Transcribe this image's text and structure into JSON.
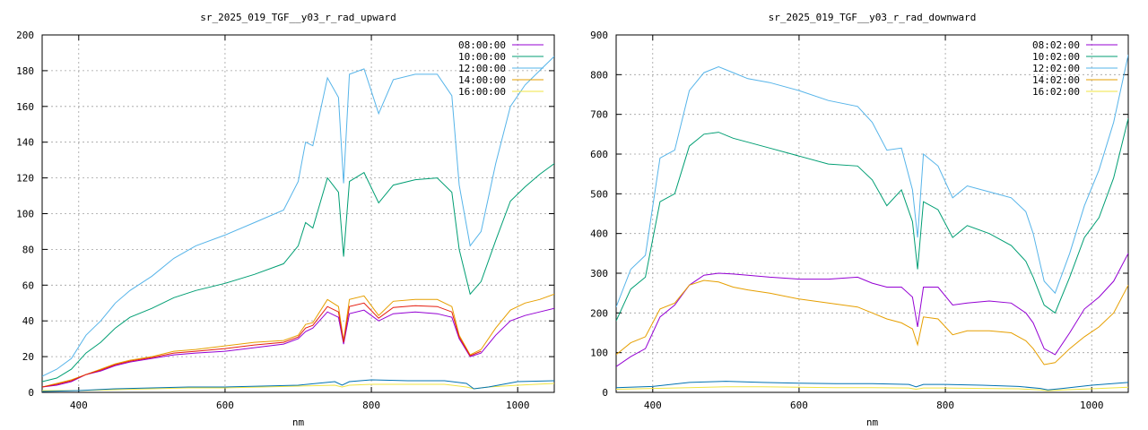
{
  "chart_data": [
    {
      "type": "line",
      "title": "sr_2025_019_TGF__y03_r_rad_upward",
      "xlabel": "nm",
      "ylabel": "",
      "xlim": [
        350,
        1050
      ],
      "ylim": [
        0,
        200
      ],
      "xticks": [
        400,
        600,
        800,
        1000
      ],
      "yticks": [
        0,
        20,
        40,
        60,
        80,
        100,
        120,
        140,
        160,
        180,
        200
      ],
      "grid": true,
      "legend": "top-right",
      "series": [
        {
          "name": "08:00:00",
          "color": "#9400d3",
          "x": [
            350,
            370,
            390,
            410,
            430,
            450,
            470,
            500,
            530,
            560,
            600,
            640,
            680,
            700,
            710,
            720,
            740,
            755,
            762,
            770,
            790,
            810,
            830,
            860,
            890,
            910,
            920,
            935,
            950,
            970,
            990,
            1010,
            1030,
            1050
          ],
          "y": [
            3,
            4,
            6,
            10,
            12,
            15,
            17,
            19,
            21,
            22,
            23,
            25,
            27,
            30,
            34,
            36,
            45,
            42,
            27,
            44,
            46,
            40,
            44,
            45,
            44,
            42,
            30,
            20,
            22,
            32,
            40,
            43,
            45,
            47
          ]
        },
        {
          "name": "10:00:00",
          "color": "#009e73",
          "x": [
            350,
            370,
            390,
            410,
            430,
            450,
            470,
            500,
            530,
            560,
            600,
            640,
            680,
            700,
            710,
            720,
            740,
            755,
            762,
            770,
            790,
            810,
            830,
            860,
            890,
            910,
            920,
            935,
            950,
            970,
            990,
            1010,
            1030,
            1050
          ],
          "y": [
            6,
            8,
            13,
            22,
            28,
            36,
            42,
            47,
            53,
            57,
            61,
            66,
            72,
            82,
            95,
            92,
            120,
            112,
            76,
            118,
            123,
            106,
            116,
            119,
            120,
            112,
            80,
            55,
            62,
            85,
            107,
            115,
            122,
            128
          ]
        },
        {
          "name": "12:00:00",
          "color": "#56b4e9",
          "x": [
            350,
            370,
            390,
            410,
            430,
            450,
            470,
            500,
            530,
            560,
            600,
            640,
            680,
            700,
            710,
            720,
            740,
            755,
            762,
            770,
            790,
            810,
            830,
            860,
            890,
            910,
            920,
            935,
            950,
            970,
            990,
            1010,
            1030,
            1050
          ],
          "y": [
            9,
            13,
            19,
            32,
            40,
            50,
            57,
            65,
            75,
            82,
            88,
            95,
            102,
            118,
            140,
            138,
            176,
            165,
            117,
            178,
            181,
            156,
            175,
            178,
            178,
            166,
            116,
            82,
            90,
            128,
            160,
            172,
            180,
            188
          ]
        },
        {
          "name": "14:00:00",
          "color": "#e69f00",
          "x": [
            350,
            370,
            390,
            410,
            430,
            450,
            470,
            500,
            530,
            560,
            600,
            640,
            680,
            700,
            710,
            720,
            740,
            755,
            762,
            770,
            790,
            810,
            830,
            860,
            890,
            910,
            920,
            935,
            950,
            970,
            990,
            1010,
            1030,
            1050
          ],
          "y": [
            3,
            5,
            7,
            10,
            13,
            16,
            18,
            20,
            23,
            24,
            26,
            28,
            29,
            32,
            38,
            39,
            52,
            48,
            29,
            52,
            54,
            43,
            51,
            52,
            52,
            48,
            32,
            21,
            24,
            36,
            46,
            50,
            52,
            55
          ]
        },
        {
          "name": "16:00:00",
          "color": "#f0e442",
          "x": [
            350,
            400,
            450,
            500,
            550,
            600,
            650,
            700,
            750,
            760,
            770,
            800,
            850,
            900,
            930,
            940,
            960,
            1000,
            1050
          ],
          "y": [
            1,
            1,
            1.5,
            2,
            2.5,
            2.5,
            3,
            3.5,
            4,
            3,
            4,
            4.5,
            4.5,
            4.5,
            3,
            2,
            3,
            4,
            5
          ]
        },
        {
          "name": "",
          "color": "#0072b2",
          "x": [
            350,
            400,
            450,
            500,
            550,
            600,
            650,
            700,
            750,
            760,
            770,
            800,
            850,
            900,
            930,
            940,
            960,
            1000,
            1050
          ],
          "y": [
            0.5,
            1,
            2,
            2.5,
            3,
            3,
            3.5,
            4,
            6,
            4,
            6,
            7,
            6.5,
            6.5,
            5,
            2,
            3,
            6,
            6.5
          ]
        },
        {
          "name": "",
          "color": "#e51e10",
          "x": [
            350,
            370,
            390,
            410,
            430,
            450,
            470,
            500,
            530,
            560,
            600,
            640,
            680,
            700,
            710,
            720,
            740,
            755,
            762,
            770,
            790,
            810,
            830,
            860,
            890,
            910,
            920,
            935,
            950
          ],
          "y": [
            3,
            4.5,
            6.5,
            10,
            12.5,
            15.5,
            17.5,
            19.5,
            22,
            23,
            24.5,
            26.5,
            28,
            31,
            36,
            37.5,
            48,
            45,
            28,
            48,
            50,
            41.5,
            47.5,
            48.5,
            48,
            45,
            31,
            20.5,
            23
          ]
        }
      ]
    },
    {
      "type": "line",
      "title": "sr_2025_019_TGF__y03_r_rad_downward",
      "xlabel": "nm",
      "ylabel": "",
      "xlim": [
        350,
        1050
      ],
      "ylim": [
        0,
        900
      ],
      "xticks": [
        400,
        600,
        800,
        1000
      ],
      "yticks": [
        0,
        100,
        200,
        300,
        400,
        500,
        600,
        700,
        800,
        900
      ],
      "grid": true,
      "legend": "top-right",
      "series": [
        {
          "name": "08:02:00",
          "color": "#9400d3",
          "x": [
            350,
            370,
            390,
            410,
            430,
            450,
            470,
            490,
            510,
            530,
            560,
            600,
            640,
            680,
            700,
            720,
            740,
            755,
            762,
            770,
            790,
            810,
            830,
            860,
            890,
            910,
            920,
            935,
            950,
            970,
            990,
            1010,
            1030,
            1050
          ],
          "y": [
            65,
            90,
            110,
            190,
            220,
            270,
            295,
            300,
            298,
            295,
            290,
            285,
            285,
            290,
            275,
            265,
            265,
            240,
            165,
            265,
            265,
            220,
            225,
            230,
            225,
            200,
            175,
            110,
            95,
            150,
            210,
            240,
            280,
            350
          ]
        },
        {
          "name": "10:02:00",
          "color": "#009e73",
          "x": [
            350,
            370,
            390,
            410,
            430,
            450,
            470,
            490,
            510,
            530,
            560,
            600,
            640,
            680,
            700,
            720,
            740,
            755,
            762,
            770,
            790,
            810,
            830,
            860,
            890,
            910,
            920,
            935,
            950,
            970,
            990,
            1010,
            1030,
            1050
          ],
          "y": [
            180,
            260,
            290,
            480,
            500,
            620,
            650,
            655,
            640,
            630,
            615,
            595,
            575,
            570,
            535,
            470,
            510,
            430,
            310,
            480,
            460,
            390,
            420,
            400,
            370,
            330,
            290,
            220,
            200,
            290,
            390,
            440,
            540,
            690
          ]
        },
        {
          "name": "12:02:00",
          "color": "#56b4e9",
          "x": [
            350,
            370,
            390,
            410,
            430,
            450,
            470,
            490,
            510,
            530,
            560,
            600,
            640,
            680,
            700,
            720,
            740,
            755,
            762,
            770,
            790,
            810,
            830,
            860,
            890,
            910,
            920,
            935,
            950,
            970,
            990,
            1010,
            1030,
            1050
          ],
          "y": [
            215,
            310,
            345,
            590,
            610,
            760,
            805,
            820,
            805,
            790,
            780,
            760,
            735,
            720,
            680,
            610,
            615,
            510,
            390,
            600,
            570,
            490,
            520,
            505,
            490,
            455,
            400,
            280,
            250,
            350,
            470,
            560,
            680,
            850
          ]
        },
        {
          "name": "14:02:00",
          "color": "#e69f00",
          "x": [
            350,
            370,
            390,
            410,
            430,
            450,
            470,
            490,
            510,
            530,
            560,
            600,
            640,
            680,
            700,
            720,
            740,
            755,
            762,
            770,
            790,
            810,
            830,
            860,
            890,
            910,
            920,
            935,
            950,
            970,
            990,
            1010,
            1030,
            1050
          ],
          "y": [
            95,
            125,
            140,
            210,
            225,
            270,
            282,
            278,
            265,
            258,
            250,
            235,
            225,
            215,
            200,
            185,
            175,
            160,
            120,
            190,
            185,
            145,
            155,
            155,
            150,
            130,
            110,
            70,
            75,
            110,
            140,
            165,
            200,
            270
          ]
        },
        {
          "name": "16:02:00",
          "color": "#f0e442",
          "x": [
            350,
            400,
            450,
            500,
            550,
            600,
            650,
            700,
            750,
            760,
            770,
            800,
            850,
            900,
            930,
            940,
            960,
            1000,
            1050
          ],
          "y": [
            8,
            10,
            12,
            14,
            14,
            13,
            12,
            12,
            11,
            8,
            11,
            11,
            10,
            9,
            6,
            4,
            6,
            9,
            13
          ]
        },
        {
          "name": "",
          "color": "#0072b2",
          "x": [
            350,
            400,
            450,
            500,
            550,
            600,
            650,
            700,
            750,
            760,
            770,
            800,
            850,
            900,
            930,
            940,
            960,
            1000,
            1050
          ],
          "y": [
            12,
            15,
            25,
            28,
            25,
            23,
            22,
            22,
            20,
            14,
            20,
            20,
            18,
            15,
            10,
            6,
            10,
            18,
            25
          ]
        }
      ]
    }
  ]
}
